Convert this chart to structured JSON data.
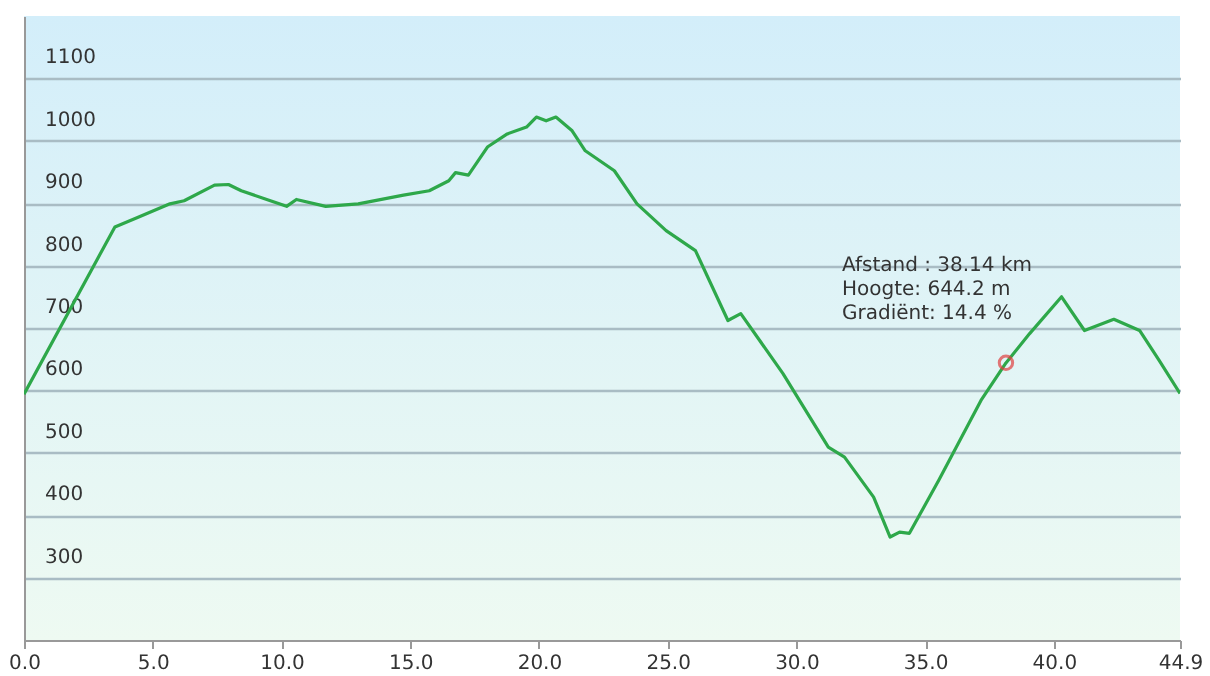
{
  "chart_data": {
    "type": "line",
    "x": [
      0,
      3.53,
      4.41,
      5.67,
      6.22,
      7.4,
      7.94,
      8.44,
      9.57,
      10.2,
      10.58,
      11.72,
      12.98,
      14.74,
      15.74,
      16.5,
      16.76,
      17.26,
      18.0,
      18.77,
      19.52,
      19.9,
      20.28,
      20.66,
      21.29,
      21.8,
      22.93,
      23.81,
      24.94,
      26.08,
      27.34,
      27.84,
      29.48,
      31.24,
      31.87,
      33.0,
      33.64,
      34.01,
      34.39,
      35.53,
      37.17,
      38.14,
      39.06,
      40.3,
      41.19,
      42.33,
      43.33,
      44.09,
      44.9
    ],
    "series": [
      {
        "color": "#2ea84a",
        "values": [
          594,
          862,
          877,
          899,
          904,
          929,
          930,
          920,
          904,
          895,
          906,
          895,
          899,
          913,
          920,
          936,
          949,
          945,
          990,
          1011,
          1022,
          1038,
          1032,
          1038,
          1016,
          984,
          952,
          899,
          856,
          824,
          712,
          723,
          627,
          509,
          493,
          429,
          365,
          373,
          371,
          456,
          584,
          644,
          691,
          750,
          696,
          714,
          696,
          648,
          595
        ]
      }
    ],
    "xlim": [
      0,
      44.9
    ],
    "xticks": [
      {
        "value": 0,
        "label": "0.0"
      },
      {
        "value": 5,
        "label": "5.0"
      },
      {
        "value": 10,
        "label": "10.0"
      },
      {
        "value": 15,
        "label": "15.0"
      },
      {
        "value": 20,
        "label": "20.0"
      },
      {
        "value": 25,
        "label": "25.0"
      },
      {
        "value": 30,
        "label": "30.0"
      },
      {
        "value": 35,
        "label": "35.0"
      },
      {
        "value": 40,
        "label": "40.0"
      },
      {
        "value": 44.9,
        "label": "44.9"
      }
    ],
    "ylim": [
      200,
      1200
    ],
    "yticks": [
      300,
      400,
      500,
      600,
      700,
      800,
      900,
      1000,
      1100
    ],
    "grid": "y",
    "marker": "none",
    "line_style": "solid",
    "annotations": [
      {
        "text": "Afstand : 38.14 km\nHoogte: 644.2 m\nGradiënt: 14.4 %",
        "x": 38.14,
        "y": 644.2
      }
    ]
  }
}
